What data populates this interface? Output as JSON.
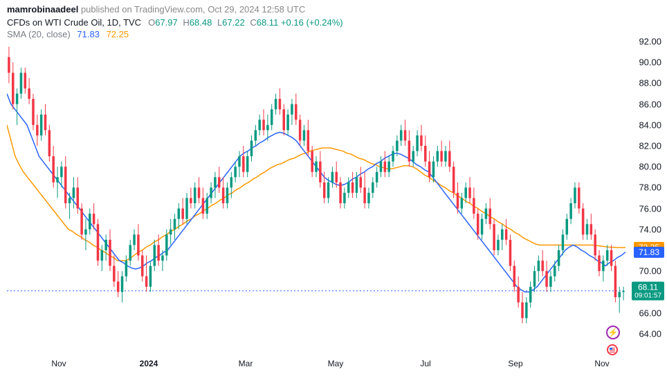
{
  "header": {
    "publisher": "mamrobinaadeel",
    "published_on": "published on TradingView.com,",
    "date": "Oct 29, 2024 12:58 UTC"
  },
  "info": {
    "symbol": "CFDs on WTI Crude Oil, 1D, TVC",
    "open_label": "O",
    "open": "67.97",
    "high_label": "H",
    "high": "68.48",
    "low_label": "L",
    "low": "67.22",
    "close_label": "C",
    "close": "68.11",
    "change": "+0.16",
    "change_pct": "(+0.24%)"
  },
  "sma": {
    "label": "SMA (20, close)",
    "val1": "71.83",
    "val2": "72.25"
  },
  "chart": {
    "background_color": "#ffffff",
    "up_color": "#089981",
    "down_color": "#f23645",
    "sma_blue_color": "#2962ff",
    "sma_orange_color": "#ff9800",
    "ylim": [
      62,
      92
    ],
    "yticks": [
      64,
      66,
      68,
      70,
      72,
      74,
      76,
      78,
      80,
      82,
      84,
      86,
      88,
      90,
      92
    ],
    "xticks_labels": [
      "Nov",
      "2024",
      "Mar",
      "May",
      "Jul",
      "Sep",
      "Nov"
    ],
    "xticks_pos": [
      75,
      205,
      345,
      475,
      605,
      735,
      860
    ],
    "price_tags": {
      "orange": "72.25",
      "blue": "71.83",
      "green": "68.11",
      "green_sub": "09:01:57"
    },
    "current_price": 68.11,
    "candles": [
      {
        "o": 90.5,
        "h": 91.5,
        "l": 88.0,
        "c": 89.0
      },
      {
        "o": 89.0,
        "h": 90.0,
        "l": 85.5,
        "c": 86.0
      },
      {
        "o": 86.0,
        "h": 87.5,
        "l": 84.0,
        "c": 87.0
      },
      {
        "o": 87.0,
        "h": 89.5,
        "l": 86.5,
        "c": 89.0
      },
      {
        "o": 89.0,
        "h": 89.5,
        "l": 87.0,
        "c": 87.5
      },
      {
        "o": 87.5,
        "h": 88.5,
        "l": 86.0,
        "c": 86.5
      },
      {
        "o": 86.5,
        "h": 87.0,
        "l": 83.5,
        "c": 84.0
      },
      {
        "o": 84.0,
        "h": 85.0,
        "l": 82.0,
        "c": 83.0
      },
      {
        "o": 83.0,
        "h": 85.5,
        "l": 82.5,
        "c": 85.0
      },
      {
        "o": 85.0,
        "h": 86.0,
        "l": 83.0,
        "c": 83.5
      },
      {
        "o": 83.5,
        "h": 84.0,
        "l": 80.5,
        "c": 81.0
      },
      {
        "o": 81.0,
        "h": 82.0,
        "l": 78.0,
        "c": 78.5
      },
      {
        "o": 78.5,
        "h": 80.0,
        "l": 77.0,
        "c": 79.0
      },
      {
        "o": 79.0,
        "h": 80.5,
        "l": 78.0,
        "c": 80.0
      },
      {
        "o": 80.0,
        "h": 81.0,
        "l": 76.0,
        "c": 76.5
      },
      {
        "o": 76.5,
        "h": 77.5,
        "l": 75.0,
        "c": 77.0
      },
      {
        "o": 77.0,
        "h": 79.0,
        "l": 76.0,
        "c": 78.0
      },
      {
        "o": 78.0,
        "h": 79.0,
        "l": 75.5,
        "c": 76.0
      },
      {
        "o": 76.0,
        "h": 76.5,
        "l": 73.0,
        "c": 73.5
      },
      {
        "o": 73.5,
        "h": 75.0,
        "l": 72.0,
        "c": 74.0
      },
      {
        "o": 74.0,
        "h": 76.0,
        "l": 73.5,
        "c": 75.5
      },
      {
        "o": 75.5,
        "h": 76.5,
        "l": 74.0,
        "c": 74.5
      },
      {
        "o": 74.5,
        "h": 75.0,
        "l": 70.5,
        "c": 71.0
      },
      {
        "o": 71.0,
        "h": 72.5,
        "l": 70.0,
        "c": 72.0
      },
      {
        "o": 72.0,
        "h": 73.5,
        "l": 71.0,
        "c": 73.0
      },
      {
        "o": 73.0,
        "h": 74.0,
        "l": 70.0,
        "c": 70.5
      },
      {
        "o": 70.5,
        "h": 71.5,
        "l": 68.5,
        "c": 69.0
      },
      {
        "o": 69.0,
        "h": 70.0,
        "l": 67.5,
        "c": 68.0
      },
      {
        "o": 68.0,
        "h": 70.0,
        "l": 67.0,
        "c": 69.5
      },
      {
        "o": 69.5,
        "h": 71.5,
        "l": 69.0,
        "c": 71.0
      },
      {
        "o": 71.0,
        "h": 73.0,
        "l": 70.5,
        "c": 72.5
      },
      {
        "o": 72.5,
        "h": 74.0,
        "l": 72.0,
        "c": 73.5
      },
      {
        "o": 73.5,
        "h": 74.5,
        "l": 71.0,
        "c": 71.5
      },
      {
        "o": 71.5,
        "h": 72.0,
        "l": 69.0,
        "c": 69.5
      },
      {
        "o": 69.5,
        "h": 71.5,
        "l": 68.0,
        "c": 68.5
      },
      {
        "o": 68.5,
        "h": 71.0,
        "l": 68.0,
        "c": 70.5
      },
      {
        "o": 70.5,
        "h": 73.0,
        "l": 70.0,
        "c": 72.5
      },
      {
        "o": 72.5,
        "h": 73.5,
        "l": 70.5,
        "c": 71.0
      },
      {
        "o": 71.0,
        "h": 72.0,
        "l": 70.0,
        "c": 71.5
      },
      {
        "o": 71.5,
        "h": 74.0,
        "l": 71.0,
        "c": 73.5
      },
      {
        "o": 73.5,
        "h": 75.0,
        "l": 72.5,
        "c": 74.0
      },
      {
        "o": 74.0,
        "h": 75.5,
        "l": 73.0,
        "c": 75.0
      },
      {
        "o": 75.0,
        "h": 76.5,
        "l": 74.0,
        "c": 76.0
      },
      {
        "o": 76.0,
        "h": 77.0,
        "l": 74.5,
        "c": 75.0
      },
      {
        "o": 75.0,
        "h": 77.5,
        "l": 74.5,
        "c": 77.0
      },
      {
        "o": 77.0,
        "h": 78.0,
        "l": 76.0,
        "c": 76.5
      },
      {
        "o": 76.5,
        "h": 78.5,
        "l": 76.0,
        "c": 78.0
      },
      {
        "o": 78.0,
        "h": 79.0,
        "l": 76.5,
        "c": 77.0
      },
      {
        "o": 77.0,
        "h": 78.0,
        "l": 75.0,
        "c": 75.5
      },
      {
        "o": 75.5,
        "h": 77.5,
        "l": 75.0,
        "c": 77.0
      },
      {
        "o": 77.0,
        "h": 78.5,
        "l": 76.5,
        "c": 78.0
      },
      {
        "o": 78.0,
        "h": 79.5,
        "l": 77.0,
        "c": 79.0
      },
      {
        "o": 79.0,
        "h": 80.0,
        "l": 77.5,
        "c": 78.0
      },
      {
        "o": 78.0,
        "h": 79.0,
        "l": 76.0,
        "c": 76.5
      },
      {
        "o": 76.5,
        "h": 78.5,
        "l": 76.0,
        "c": 78.0
      },
      {
        "o": 78.0,
        "h": 79.5,
        "l": 77.0,
        "c": 79.0
      },
      {
        "o": 79.0,
        "h": 80.5,
        "l": 78.5,
        "c": 80.0
      },
      {
        "o": 80.0,
        "h": 81.5,
        "l": 79.0,
        "c": 81.0
      },
      {
        "o": 81.0,
        "h": 82.0,
        "l": 79.0,
        "c": 79.5
      },
      {
        "o": 79.5,
        "h": 81.5,
        "l": 79.0,
        "c": 81.0
      },
      {
        "o": 81.0,
        "h": 83.0,
        "l": 80.5,
        "c": 82.5
      },
      {
        "o": 82.5,
        "h": 84.0,
        "l": 82.0,
        "c": 83.5
      },
      {
        "o": 83.5,
        "h": 85.0,
        "l": 83.0,
        "c": 84.5
      },
      {
        "o": 84.5,
        "h": 85.5,
        "l": 83.0,
        "c": 83.5
      },
      {
        "o": 83.5,
        "h": 85.0,
        "l": 82.5,
        "c": 84.0
      },
      {
        "o": 84.0,
        "h": 86.0,
        "l": 83.5,
        "c": 85.5
      },
      {
        "o": 85.5,
        "h": 87.0,
        "l": 85.0,
        "c": 86.5
      },
      {
        "o": 86.5,
        "h": 87.5,
        "l": 85.0,
        "c": 85.5
      },
      {
        "o": 85.5,
        "h": 86.0,
        "l": 83.0,
        "c": 83.5
      },
      {
        "o": 83.5,
        "h": 85.5,
        "l": 83.0,
        "c": 85.0
      },
      {
        "o": 85.0,
        "h": 86.5,
        "l": 84.0,
        "c": 86.0
      },
      {
        "o": 86.0,
        "h": 87.0,
        "l": 84.0,
        "c": 84.5
      },
      {
        "o": 84.5,
        "h": 85.0,
        "l": 82.0,
        "c": 82.5
      },
      {
        "o": 82.5,
        "h": 84.0,
        "l": 82.0,
        "c": 83.5
      },
      {
        "o": 83.5,
        "h": 84.5,
        "l": 81.0,
        "c": 81.5
      },
      {
        "o": 81.5,
        "h": 82.0,
        "l": 79.0,
        "c": 79.5
      },
      {
        "o": 79.5,
        "h": 81.0,
        "l": 79.0,
        "c": 80.5
      },
      {
        "o": 80.5,
        "h": 81.5,
        "l": 78.0,
        "c": 78.5
      },
      {
        "o": 78.5,
        "h": 79.5,
        "l": 76.5,
        "c": 77.0
      },
      {
        "o": 77.0,
        "h": 79.0,
        "l": 76.5,
        "c": 78.5
      },
      {
        "o": 78.5,
        "h": 80.0,
        "l": 78.0,
        "c": 79.5
      },
      {
        "o": 79.5,
        "h": 80.5,
        "l": 78.0,
        "c": 78.5
      },
      {
        "o": 78.5,
        "h": 79.0,
        "l": 76.0,
        "c": 76.5
      },
      {
        "o": 76.5,
        "h": 78.0,
        "l": 76.0,
        "c": 77.5
      },
      {
        "o": 77.5,
        "h": 79.0,
        "l": 77.0,
        "c": 78.5
      },
      {
        "o": 78.5,
        "h": 79.5,
        "l": 77.0,
        "c": 77.5
      },
      {
        "o": 77.5,
        "h": 79.5,
        "l": 77.0,
        "c": 79.0
      },
      {
        "o": 79.0,
        "h": 80.0,
        "l": 77.5,
        "c": 78.0
      },
      {
        "o": 78.0,
        "h": 79.5,
        "l": 76.0,
        "c": 76.5
      },
      {
        "o": 76.5,
        "h": 78.0,
        "l": 76.0,
        "c": 77.5
      },
      {
        "o": 77.5,
        "h": 79.0,
        "l": 77.0,
        "c": 78.5
      },
      {
        "o": 78.5,
        "h": 80.0,
        "l": 78.0,
        "c": 79.5
      },
      {
        "o": 79.5,
        "h": 81.0,
        "l": 79.0,
        "c": 80.5
      },
      {
        "o": 80.5,
        "h": 81.5,
        "l": 79.0,
        "c": 79.5
      },
      {
        "o": 79.5,
        "h": 81.0,
        "l": 79.0,
        "c": 80.5
      },
      {
        "o": 80.5,
        "h": 82.0,
        "l": 80.0,
        "c": 81.5
      },
      {
        "o": 81.5,
        "h": 83.0,
        "l": 81.0,
        "c": 82.5
      },
      {
        "o": 82.5,
        "h": 84.0,
        "l": 82.0,
        "c": 83.5
      },
      {
        "o": 83.5,
        "h": 84.5,
        "l": 82.0,
        "c": 82.5
      },
      {
        "o": 82.5,
        "h": 83.5,
        "l": 80.0,
        "c": 80.5
      },
      {
        "o": 80.5,
        "h": 82.0,
        "l": 80.0,
        "c": 81.5
      },
      {
        "o": 81.5,
        "h": 83.5,
        "l": 81.0,
        "c": 83.0
      },
      {
        "o": 83.0,
        "h": 84.0,
        "l": 81.5,
        "c": 82.0
      },
      {
        "o": 82.0,
        "h": 83.0,
        "l": 80.0,
        "c": 80.5
      },
      {
        "o": 80.5,
        "h": 81.5,
        "l": 78.5,
        "c": 79.0
      },
      {
        "o": 79.0,
        "h": 81.0,
        "l": 78.5,
        "c": 80.5
      },
      {
        "o": 80.5,
        "h": 82.0,
        "l": 80.0,
        "c": 81.5
      },
      {
        "o": 81.5,
        "h": 82.5,
        "l": 80.0,
        "c": 80.5
      },
      {
        "o": 80.5,
        "h": 82.0,
        "l": 80.0,
        "c": 81.5
      },
      {
        "o": 81.5,
        "h": 82.5,
        "l": 79.5,
        "c": 80.0
      },
      {
        "o": 80.0,
        "h": 80.5,
        "l": 77.0,
        "c": 77.5
      },
      {
        "o": 77.5,
        "h": 78.5,
        "l": 75.5,
        "c": 76.0
      },
      {
        "o": 76.0,
        "h": 77.5,
        "l": 75.5,
        "c": 77.0
      },
      {
        "o": 77.0,
        "h": 78.5,
        "l": 76.5,
        "c": 78.0
      },
      {
        "o": 78.0,
        "h": 79.0,
        "l": 76.5,
        "c": 77.0
      },
      {
        "o": 77.0,
        "h": 78.0,
        "l": 75.0,
        "c": 75.5
      },
      {
        "o": 75.5,
        "h": 76.0,
        "l": 73.0,
        "c": 73.5
      },
      {
        "o": 73.5,
        "h": 75.5,
        "l": 73.0,
        "c": 75.0
      },
      {
        "o": 75.0,
        "h": 76.5,
        "l": 74.5,
        "c": 76.0
      },
      {
        "o": 76.0,
        "h": 77.0,
        "l": 74.0,
        "c": 74.5
      },
      {
        "o": 74.5,
        "h": 75.0,
        "l": 71.5,
        "c": 72.0
      },
      {
        "o": 72.0,
        "h": 73.5,
        "l": 71.5,
        "c": 73.0
      },
      {
        "o": 73.0,
        "h": 74.5,
        "l": 72.0,
        "c": 74.0
      },
      {
        "o": 74.0,
        "h": 75.0,
        "l": 72.5,
        "c": 73.0
      },
      {
        "o": 73.0,
        "h": 73.5,
        "l": 70.0,
        "c": 70.5
      },
      {
        "o": 70.5,
        "h": 71.0,
        "l": 68.0,
        "c": 68.5
      },
      {
        "o": 68.5,
        "h": 69.5,
        "l": 66.5,
        "c": 67.0
      },
      {
        "o": 67.0,
        "h": 68.0,
        "l": 65.0,
        "c": 65.5
      },
      {
        "o": 65.5,
        "h": 67.5,
        "l": 65.0,
        "c": 67.0
      },
      {
        "o": 67.0,
        "h": 69.0,
        "l": 66.5,
        "c": 68.5
      },
      {
        "o": 68.5,
        "h": 70.5,
        "l": 68.0,
        "c": 70.0
      },
      {
        "o": 70.0,
        "h": 71.5,
        "l": 69.0,
        "c": 71.0
      },
      {
        "o": 71.0,
        "h": 72.0,
        "l": 69.5,
        "c": 70.0
      },
      {
        "o": 70.0,
        "h": 71.0,
        "l": 68.0,
        "c": 68.5
      },
      {
        "o": 68.5,
        "h": 70.0,
        "l": 68.0,
        "c": 69.5
      },
      {
        "o": 69.5,
        "h": 71.0,
        "l": 69.0,
        "c": 70.5
      },
      {
        "o": 70.5,
        "h": 72.5,
        "l": 70.0,
        "c": 72.0
      },
      {
        "o": 72.0,
        "h": 74.0,
        "l": 71.5,
        "c": 73.5
      },
      {
        "o": 73.5,
        "h": 75.5,
        "l": 73.0,
        "c": 75.0
      },
      {
        "o": 75.0,
        "h": 77.0,
        "l": 74.5,
        "c": 76.5
      },
      {
        "o": 76.5,
        "h": 78.5,
        "l": 76.0,
        "c": 78.0
      },
      {
        "o": 78.0,
        "h": 78.5,
        "l": 75.5,
        "c": 76.0
      },
      {
        "o": 76.0,
        "h": 76.5,
        "l": 73.0,
        "c": 73.5
      },
      {
        "o": 73.5,
        "h": 75.0,
        "l": 73.0,
        "c": 74.5
      },
      {
        "o": 74.5,
        "h": 75.5,
        "l": 73.0,
        "c": 73.5
      },
      {
        "o": 73.5,
        "h": 74.0,
        "l": 71.0,
        "c": 71.5
      },
      {
        "o": 71.5,
        "h": 72.0,
        "l": 69.5,
        "c": 70.0
      },
      {
        "o": 70.0,
        "h": 71.5,
        "l": 69.0,
        "c": 71.0
      },
      {
        "o": 71.0,
        "h": 72.5,
        "l": 70.5,
        "c": 72.0
      },
      {
        "o": 72.0,
        "h": 72.5,
        "l": 70.0,
        "c": 70.5
      },
      {
        "o": 70.5,
        "h": 71.0,
        "l": 67.0,
        "c": 67.5
      },
      {
        "o": 67.5,
        "h": 68.5,
        "l": 66.0,
        "c": 68.0
      },
      {
        "o": 68.0,
        "h": 68.5,
        "l": 67.2,
        "c": 68.1
      }
    ],
    "sma_blue": [
      87,
      86,
      85.5,
      85,
      84.5,
      84,
      83,
      82,
      81,
      80.5,
      80,
      79.5,
      79,
      78.5,
      78,
      77.5,
      77,
      76.5,
      76,
      75.5,
      75,
      74.5,
      74,
      73.5,
      73,
      72.5,
      72,
      71.5,
      71,
      70.8,
      70.5,
      70.3,
      70.2,
      70.3,
      70.5,
      70.8,
      71,
      71.3,
      71.5,
      71.8,
      72,
      72.5,
      73,
      73.5,
      74,
      74.5,
      75,
      75.5,
      76,
      76.5,
      77,
      77.5,
      78,
      78.5,
      79,
      79.5,
      80,
      80.5,
      81,
      81.3,
      81.5,
      81.8,
      82,
      82.3,
      82.5,
      82.8,
      83,
      83.2,
      83.3,
      83.2,
      83,
      82.8,
      82.5,
      82,
      81.5,
      81,
      80.5,
      80,
      79.5,
      79,
      78.7,
      78.5,
      78.3,
      78.2,
      78.3,
      78.5,
      78.8,
      79,
      79.3,
      79.5,
      79.8,
      80,
      80.3,
      80.5,
      80.8,
      81,
      81.2,
      81.3,
      81.2,
      81,
      80.8,
      80.5,
      80.2,
      80,
      79.7,
      79.5,
      79,
      78.5,
      78,
      77.5,
      77,
      76.5,
      76,
      75.5,
      75,
      74.5,
      74,
      73.5,
      73,
      72.5,
      72,
      71.5,
      71,
      70.5,
      70,
      69.5,
      69,
      68.5,
      68.2,
      68,
      68,
      68.2,
      68.5,
      69,
      69.5,
      70,
      70.5,
      71,
      71.5,
      72,
      72.3,
      72.5,
      72.3,
      72,
      71.8,
      71.5,
      71.3,
      71,
      70.8,
      70.5,
      70.8,
      71,
      71.3,
      71.5,
      71.83
    ],
    "sma_orange": [
      84,
      82.5,
      81,
      80.2,
      79.5,
      79,
      78.5,
      78,
      77.5,
      77,
      76.5,
      76,
      75.5,
      75,
      74.5,
      74,
      73.8,
      73.5,
      73.3,
      73,
      72.8,
      72.5,
      72.3,
      72,
      71.8,
      71.5,
      71.3,
      71,
      71,
      71,
      71.2,
      71.5,
      71.8,
      72,
      72.3,
      72.5,
      72.8,
      73,
      73.3,
      73.5,
      73.8,
      74,
      74.3,
      74.5,
      74.8,
      75,
      75.3,
      75.5,
      75.8,
      76,
      76.3,
      76.5,
      76.8,
      77,
      77.3,
      77.5,
      77.8,
      78,
      78.3,
      78.5,
      78.8,
      79,
      79.3,
      79.5,
      79.8,
      80,
      80.2,
      80.3,
      80.5,
      80.7,
      80.8,
      81,
      81.2,
      81.3,
      81.5,
      81.6,
      81.7,
      81.8,
      81.8,
      81.8,
      81.7,
      81.6,
      81.5,
      81.3,
      81.2,
      81,
      80.8,
      80.7,
      80.5,
      80.3,
      80.2,
      80,
      79.9,
      79.8,
      79.8,
      79.9,
      80,
      80.1,
      80.1,
      80,
      79.8,
      79.5,
      79.2,
      79,
      78.7,
      78.5,
      78.2,
      78,
      77.7,
      77.5,
      77.2,
      77,
      76.7,
      76.5,
      76.2,
      76,
      75.7,
      75.5,
      75.2,
      75,
      74.7,
      74.5,
      74.2,
      74,
      73.7,
      73.5,
      73.2,
      73,
      72.8,
      72.6,
      72.5,
      72.5,
      72.5,
      72.5,
      72.5,
      72.5,
      72.5,
      72.5,
      72.5,
      72.5,
      72.5,
      72.5,
      72.5,
      72.5,
      72.45,
      72.4,
      72.35,
      72.3,
      72.28,
      72.26,
      72.25,
      72.25
    ]
  }
}
